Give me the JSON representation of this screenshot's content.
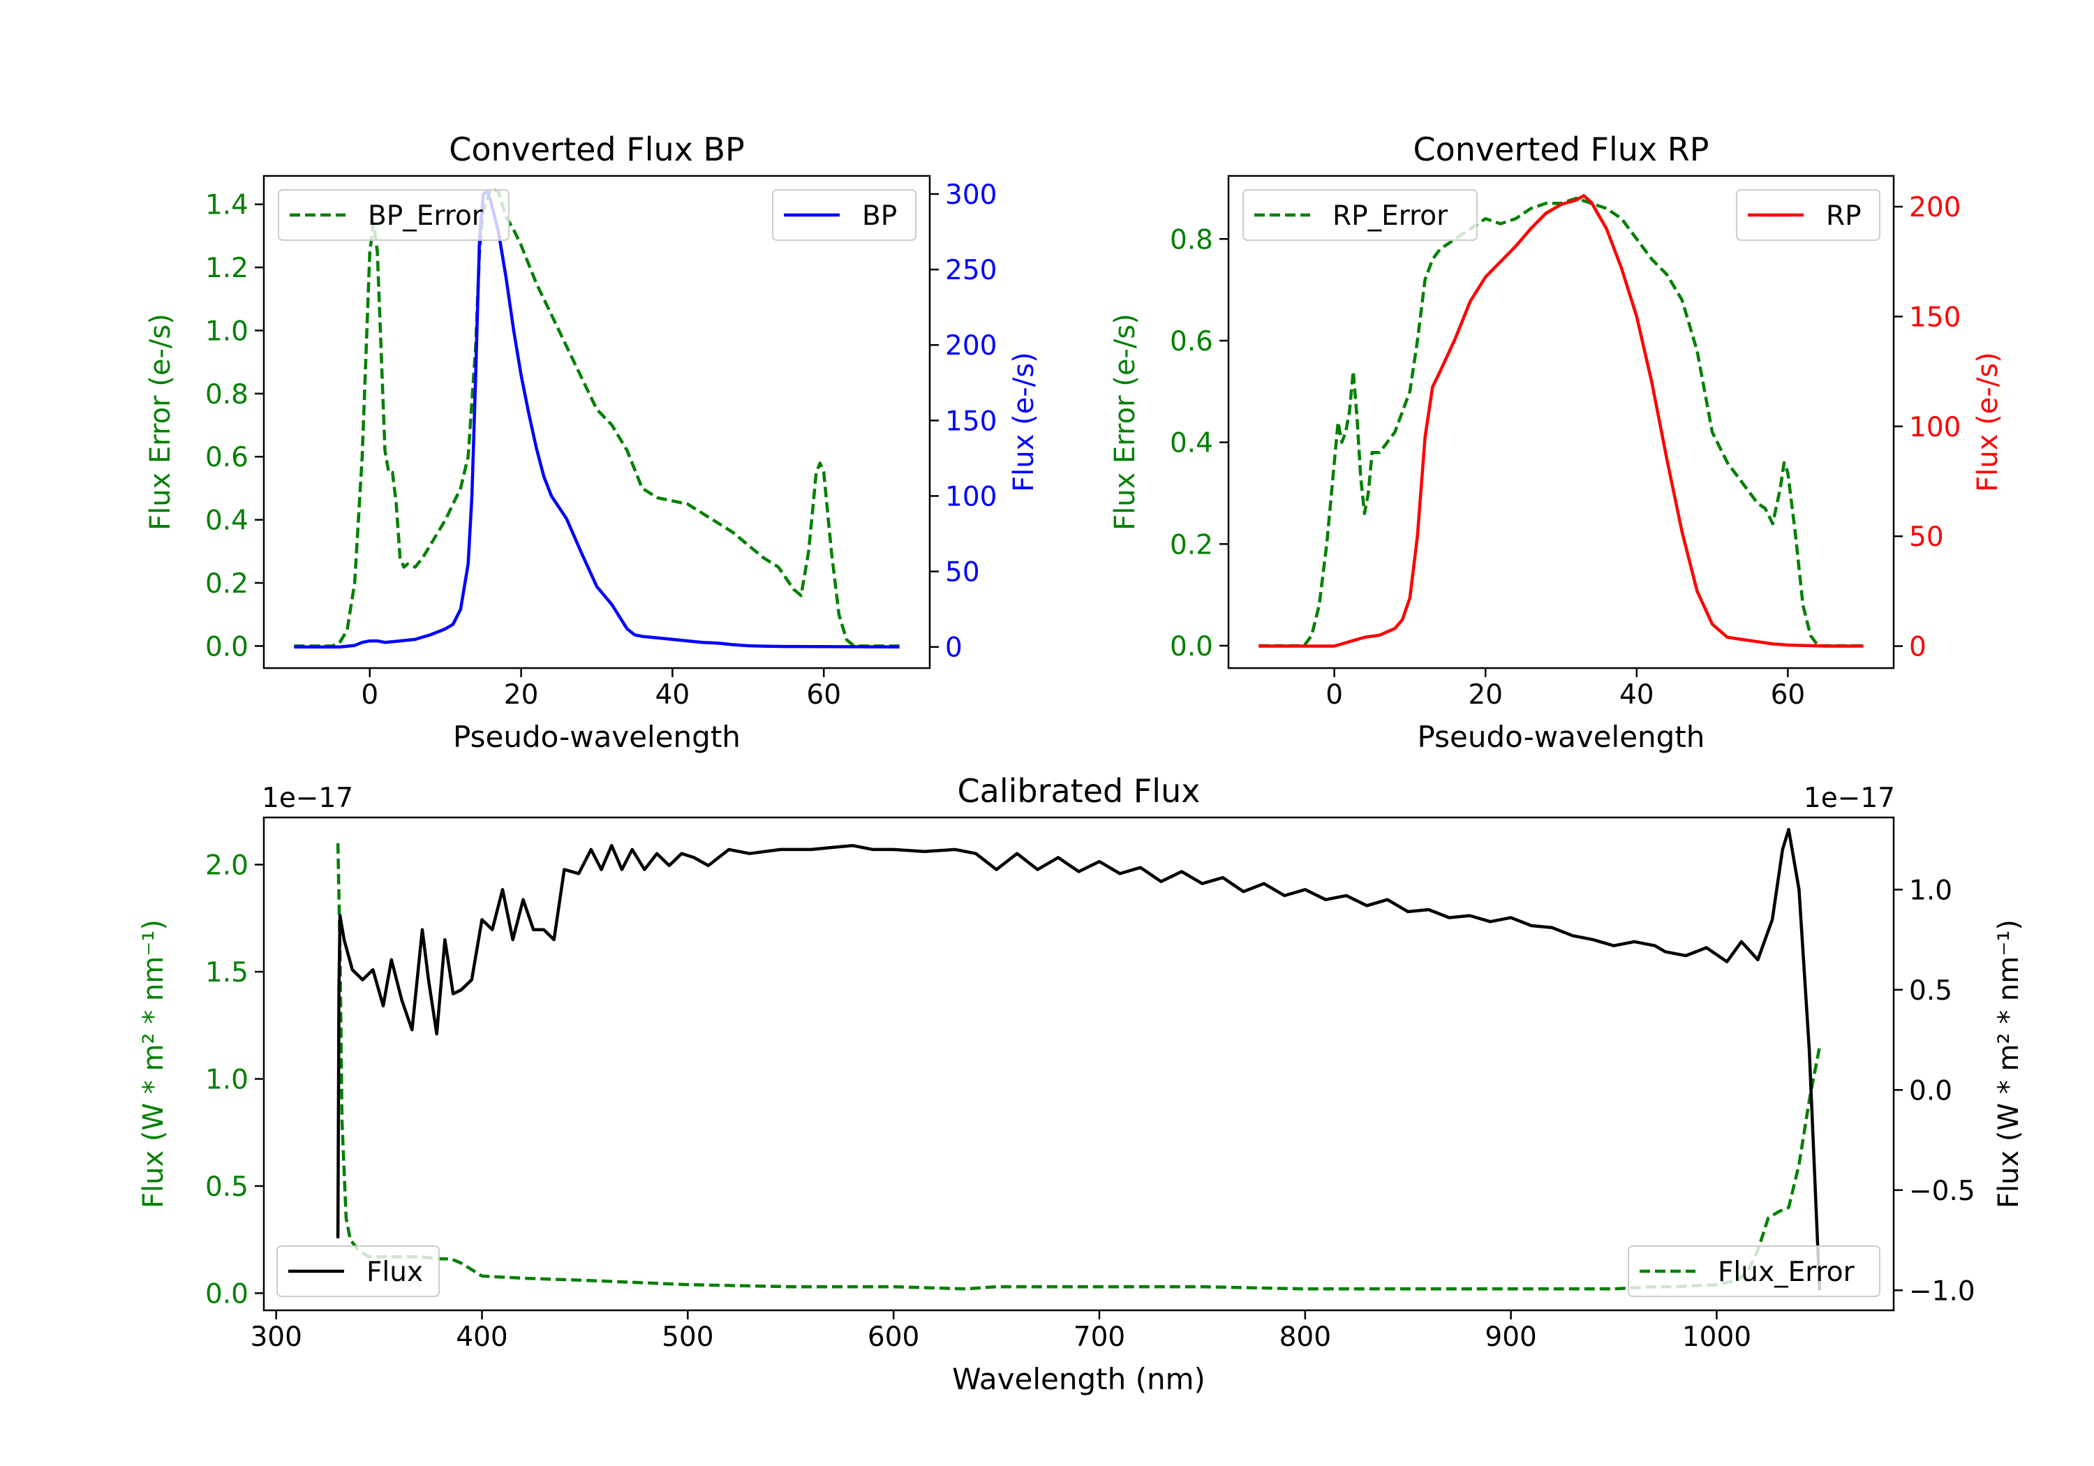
{
  "colors": {
    "bp": "#0000ff",
    "rp": "#ff0000",
    "error": "#008000",
    "flux": "#000000",
    "frame": "#000000",
    "legend_border": "#cccccc"
  },
  "chart_data": [
    {
      "id": "bp",
      "type": "line",
      "title": "Converted Flux BP",
      "xlabel": "Pseudo-wavelength",
      "ylabel_left": "Flux Error (e-/s)",
      "ylabel_right": "Flux (e-/s)",
      "xlim": [
        -14,
        74
      ],
      "ylim_left": [
        -0.07,
        1.49
      ],
      "ylim_right": [
        -14,
        312
      ],
      "xticks": [
        0,
        20,
        40,
        60
      ],
      "xtick_labels": [
        "0",
        "20",
        "40",
        "60"
      ],
      "yticks_left": [
        0,
        0.2,
        0.4,
        0.6,
        0.8,
        1.0,
        1.2,
        1.4
      ],
      "ytick_labels_left": [
        "0.0",
        "0.2",
        "0.4",
        "0.6",
        "0.8",
        "1.0",
        "1.2",
        "1.4"
      ],
      "yticks_right": [
        0,
        50,
        100,
        150,
        200,
        250,
        300
      ],
      "ytick_labels_right": [
        "0",
        "50",
        "100",
        "150",
        "200",
        "250",
        "300"
      ],
      "legend_left": "BP_Error",
      "legend_right": "BP",
      "error_series": {
        "name": "BP_Error",
        "axis": "left",
        "style": "dashed",
        "x": [
          -10,
          -5,
          -4,
          -3,
          -2,
          -1,
          0,
          0.5,
          1,
          2,
          2.5,
          3,
          3.5,
          4,
          4.5,
          5,
          6,
          7,
          8,
          9,
          10,
          11,
          12,
          13,
          14,
          14.5,
          15,
          16,
          17,
          18,
          19,
          20,
          22,
          24,
          26,
          28,
          30,
          32,
          34,
          36,
          38,
          40,
          42,
          44,
          46,
          48,
          50,
          52,
          54,
          56,
          57,
          58,
          59,
          59.5,
          60,
          61,
          62,
          63,
          64,
          66,
          70
        ],
        "y": [
          0,
          0,
          0.01,
          0.05,
          0.2,
          0.6,
          1.25,
          1.34,
          1.25,
          0.62,
          0.55,
          0.55,
          0.45,
          0.28,
          0.25,
          0.26,
          0.25,
          0.28,
          0.32,
          0.36,
          0.4,
          0.45,
          0.5,
          0.6,
          0.95,
          1.25,
          1.38,
          1.45,
          1.44,
          1.36,
          1.32,
          1.27,
          1.15,
          1.05,
          0.95,
          0.85,
          0.75,
          0.7,
          0.62,
          0.5,
          0.47,
          0.46,
          0.45,
          0.42,
          0.39,
          0.36,
          0.32,
          0.28,
          0.25,
          0.18,
          0.16,
          0.3,
          0.55,
          0.58,
          0.55,
          0.3,
          0.1,
          0.02,
          0,
          0,
          0
        ]
      },
      "flux_series": {
        "name": "BP",
        "axis": "right",
        "style": "solid",
        "x": [
          -10,
          -4,
          -2,
          -1,
          0,
          1,
          2,
          4,
          6,
          8,
          10,
          11,
          12,
          13,
          13.5,
          14,
          14.5,
          15,
          15.5,
          16,
          16.5,
          17,
          18,
          19,
          20,
          21,
          22,
          23,
          24,
          26,
          28,
          30,
          32,
          34,
          35,
          36,
          38,
          40,
          42,
          44,
          46,
          48,
          50,
          52,
          55,
          60,
          65,
          70
        ],
        "y": [
          0,
          0,
          1,
          3,
          4,
          4,
          3,
          4,
          5,
          8,
          12,
          15,
          25,
          55,
          100,
          180,
          270,
          300,
          302,
          295,
          285,
          275,
          245,
          210,
          180,
          155,
          132,
          113,
          100,
          85,
          62,
          40,
          28,
          12,
          8,
          7,
          6,
          5,
          4,
          3,
          2.5,
          1.5,
          0.8,
          0.5,
          0.3,
          0.2,
          0.1,
          0
        ]
      }
    },
    {
      "id": "rp",
      "type": "line",
      "title": "Converted Flux RP",
      "xlabel": "Pseudo-wavelength",
      "ylabel_left": "Flux Error (e-/s)",
      "ylabel_right": "Flux (e-/s)",
      "xlim": [
        -14,
        74
      ],
      "ylim_left": [
        -0.044,
        0.924
      ],
      "ylim_right": [
        -10,
        214
      ],
      "xticks": [
        0,
        20,
        40,
        60
      ],
      "xtick_labels": [
        "0",
        "20",
        "40",
        "60"
      ],
      "yticks_left": [
        0,
        0.2,
        0.4,
        0.6,
        0.8
      ],
      "ytick_labels_left": [
        "0.0",
        "0.2",
        "0.4",
        "0.6",
        "0.8"
      ],
      "yticks_right": [
        0,
        50,
        100,
        150,
        200
      ],
      "ytick_labels_right": [
        "0",
        "50",
        "100",
        "150",
        "200"
      ],
      "legend_left": "RP_Error",
      "legend_right": "RP",
      "error_series": {
        "name": "RP_Error",
        "axis": "left",
        "style": "dashed",
        "x": [
          -10,
          -4,
          -3,
          -2,
          -1,
          0,
          0.5,
          1,
          1.5,
          2,
          2.5,
          3,
          3.5,
          4,
          4.5,
          5,
          6,
          8,
          10,
          11,
          12,
          13,
          14,
          16,
          18,
          20,
          22,
          24,
          26,
          28,
          30,
          32,
          34,
          36,
          38,
          40,
          42,
          44,
          46,
          48,
          50,
          52,
          54,
          56,
          57,
          58,
          59,
          59.5,
          60,
          61,
          62,
          63,
          64,
          66,
          70
        ],
        "y": [
          0,
          0,
          0.02,
          0.08,
          0.2,
          0.36,
          0.44,
          0.4,
          0.42,
          0.46,
          0.54,
          0.45,
          0.33,
          0.26,
          0.3,
          0.38,
          0.38,
          0.42,
          0.5,
          0.6,
          0.72,
          0.76,
          0.78,
          0.8,
          0.82,
          0.84,
          0.83,
          0.84,
          0.86,
          0.87,
          0.87,
          0.88,
          0.87,
          0.86,
          0.84,
          0.8,
          0.76,
          0.73,
          0.68,
          0.58,
          0.42,
          0.36,
          0.32,
          0.28,
          0.27,
          0.24,
          0.31,
          0.36,
          0.34,
          0.22,
          0.08,
          0.02,
          0,
          0,
          0
        ]
      },
      "flux_series": {
        "name": "RP",
        "axis": "right",
        "style": "solid",
        "x": [
          -10,
          -2,
          0,
          2,
          4,
          6,
          8,
          9,
          10,
          11,
          12,
          13,
          14,
          16,
          18,
          20,
          22,
          24,
          26,
          28,
          30,
          32,
          33,
          34,
          36,
          38,
          40,
          42,
          44,
          46,
          48,
          50,
          52,
          54,
          56,
          58,
          60,
          62,
          65,
          70
        ],
        "y": [
          0,
          0,
          0,
          2,
          4,
          5,
          8,
          12,
          22,
          50,
          95,
          118,
          125,
          140,
          157,
          168,
          175,
          182,
          190,
          197,
          201,
          203,
          205,
          202,
          190,
          172,
          150,
          120,
          85,
          52,
          25,
          10,
          4,
          3,
          2,
          1,
          0.5,
          0.3,
          0,
          0
        ]
      }
    },
    {
      "id": "calibrated",
      "type": "line",
      "title": "Calibrated Flux",
      "xlabel": "Wavelength (nm)",
      "ylabel_left": "Flux (W * m² * nm⁻¹)",
      "ylabel_right": "Flux (W * m² * nm⁻¹)",
      "left_offset_label": "1e−17",
      "right_offset_label": "1e−17",
      "xlim": [
        294,
        1086
      ],
      "ylim_left": [
        -0.08,
        2.22
      ],
      "ylim_right": [
        -1.1,
        1.36
      ],
      "xticks": [
        300,
        400,
        500,
        600,
        700,
        800,
        900,
        1000
      ],
      "xtick_labels": [
        "300",
        "400",
        "500",
        "600",
        "700",
        "800",
        "900",
        "1000"
      ],
      "yticks_left": [
        0,
        0.5,
        1.0,
        1.5,
        2.0
      ],
      "ytick_labels_left": [
        "0.0",
        "0.5",
        "1.0",
        "1.5",
        "2.0"
      ],
      "yticks_right": [
        -1.0,
        -0.5,
        0,
        0.5,
        1.0
      ],
      "ytick_labels_right": [
        "−1.0",
        "−0.5",
        "0.0",
        "0.5",
        "1.0"
      ],
      "legend_left": "Flux",
      "legend_right": "Flux_Error",
      "flux_series": {
        "name": "Flux",
        "axis": "right",
        "style": "solid",
        "x": [
          330,
          330.5,
          331,
          333,
          337,
          342,
          347,
          352,
          356,
          361,
          366,
          371,
          374,
          378,
          382,
          386,
          390,
          395,
          400,
          405,
          410,
          415,
          420,
          425,
          430,
          435,
          440,
          447,
          453,
          458,
          463,
          468,
          473,
          479,
          485,
          491,
          497,
          503,
          510,
          520,
          530,
          545,
          560,
          570,
          580,
          590,
          600,
          615,
          630,
          640,
          650,
          660,
          670,
          680,
          690,
          700,
          710,
          720,
          730,
          740,
          750,
          760,
          770,
          780,
          790,
          800,
          810,
          820,
          830,
          840,
          850,
          860,
          870,
          880,
          890,
          900,
          910,
          920,
          930,
          940,
          950,
          960,
          970,
          975,
          985,
          995,
          1005,
          1012,
          1020,
          1027,
          1032,
          1035,
          1040,
          1045,
          1050
        ],
        "y": [
          -0.74,
          0.5,
          0.87,
          0.75,
          0.6,
          0.55,
          0.6,
          0.42,
          0.65,
          0.45,
          0.3,
          0.8,
          0.55,
          0.28,
          0.75,
          0.48,
          0.5,
          0.55,
          0.85,
          0.8,
          1.0,
          0.75,
          0.95,
          0.8,
          0.8,
          0.75,
          1.1,
          1.08,
          1.2,
          1.1,
          1.22,
          1.1,
          1.2,
          1.1,
          1.18,
          1.12,
          1.18,
          1.16,
          1.12,
          1.2,
          1.18,
          1.2,
          1.2,
          1.21,
          1.22,
          1.2,
          1.2,
          1.19,
          1.2,
          1.18,
          1.1,
          1.18,
          1.1,
          1.16,
          1.09,
          1.14,
          1.08,
          1.11,
          1.04,
          1.09,
          1.03,
          1.06,
          0.99,
          1.03,
          0.97,
          1.0,
          0.95,
          0.97,
          0.92,
          0.95,
          0.89,
          0.9,
          0.86,
          0.87,
          0.84,
          0.86,
          0.82,
          0.81,
          0.77,
          0.75,
          0.72,
          0.74,
          0.72,
          0.69,
          0.67,
          0.71,
          0.64,
          0.74,
          0.65,
          0.85,
          1.2,
          1.3,
          1.0,
          0.2,
          -1.0
        ]
      },
      "error_series": {
        "name": "Flux_Error",
        "axis": "left",
        "style": "dashed",
        "x": [
          330,
          331,
          332,
          334,
          336,
          340,
          345,
          350,
          360,
          370,
          380,
          385,
          390,
          400,
          420,
          450,
          500,
          550,
          600,
          635,
          650,
          700,
          750,
          800,
          850,
          900,
          950,
          970,
          980,
          1000,
          1010,
          1015,
          1020,
          1025,
          1030,
          1035,
          1040,
          1045,
          1050
        ],
        "y": [
          2.1,
          1.6,
          0.8,
          0.35,
          0.25,
          0.2,
          0.17,
          0.17,
          0.17,
          0.17,
          0.16,
          0.16,
          0.14,
          0.08,
          0.07,
          0.06,
          0.04,
          0.03,
          0.03,
          0.02,
          0.03,
          0.03,
          0.03,
          0.02,
          0.02,
          0.02,
          0.02,
          0.03,
          0.03,
          0.04,
          0.06,
          0.1,
          0.2,
          0.35,
          0.38,
          0.4,
          0.6,
          0.9,
          1.15
        ]
      }
    }
  ]
}
